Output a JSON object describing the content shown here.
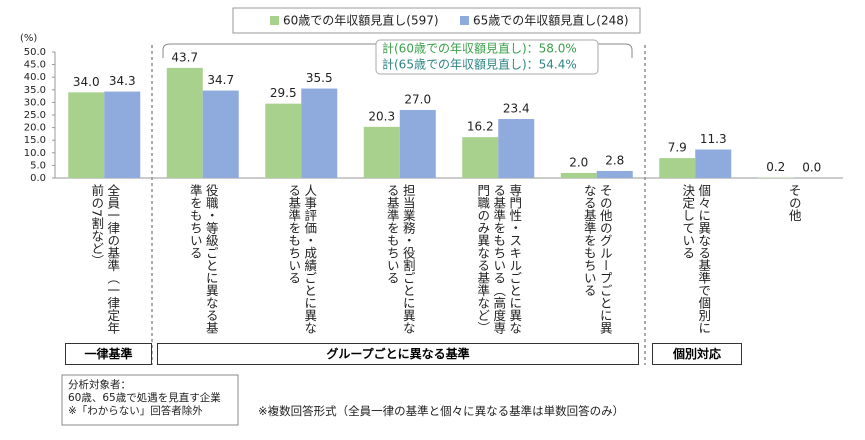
{
  "chart_data": {
    "type": "bar",
    "y_unit": "(%)",
    "categories": [
      "全員一律の基準（一律定年前の7割など）",
      "役職・等級ごとに異なる基準をもちいる",
      "人事評価・成績ごとに異なる基準をもちいる",
      "担当業務・役割ごとに異なる基準をもちいる",
      "専門性・スキルごとに異なる基準をもちいる（高度専門職のみ異なる基準など）",
      "その他のグループごとに異なる基準をもちいる",
      "個々に異なる基準で個別に決定している",
      "その他"
    ],
    "series": [
      {
        "name": "60歳での年収額見直し(597)",
        "color": "#a9d18e",
        "values": [
          34.0,
          43.7,
          29.5,
          20.3,
          16.2,
          2.0,
          7.9,
          0.2
        ],
        "value_labels": [
          "34.0",
          "43.7",
          "29.5",
          "20.3",
          "16.2",
          "2.0",
          "7.9",
          "0.2"
        ]
      },
      {
        "name": "65歳での年収額見直し(248)",
        "color": "#8faadc",
        "values": [
          34.3,
          34.7,
          35.5,
          27.0,
          23.4,
          2.8,
          11.3,
          0.0
        ],
        "value_labels": [
          "34.3",
          "34.7",
          "35.5",
          "27.0",
          "23.4",
          "2.8",
          "11.3",
          "0.0"
        ]
      }
    ],
    "ylim": [
      0,
      50
    ],
    "yticks": [
      {
        "value": 0,
        "label": "0.0"
      },
      {
        "value": 5,
        "label": "5.0"
      },
      {
        "value": 10,
        "label": "10.0"
      },
      {
        "value": 15,
        "label": "15.0"
      },
      {
        "value": 20,
        "label": "20.0"
      },
      {
        "value": 25,
        "label": "25.0"
      },
      {
        "value": 30,
        "label": "30.0"
      },
      {
        "value": 35,
        "label": "35.0"
      },
      {
        "value": 40,
        "label": "40.0"
      },
      {
        "value": 45,
        "label": "45.0"
      },
      {
        "value": 50,
        "label": "50.0"
      }
    ],
    "annotations": [
      "計(60歳での年収額見直し)：58.0%",
      "計(65歳での年収額見直し)：54.4%"
    ],
    "group_labels": [
      "一律基準",
      "グループごとに異なる基準",
      "個別対応"
    ],
    "notes": [
      "分析対象者：",
      "60歳、65歳で処遇を見直す企業",
      "※「わからない」回答者除外",
      "※複数回答形式（全員一律の基準と個々に異なる基準は単数回答のみ）"
    ]
  }
}
